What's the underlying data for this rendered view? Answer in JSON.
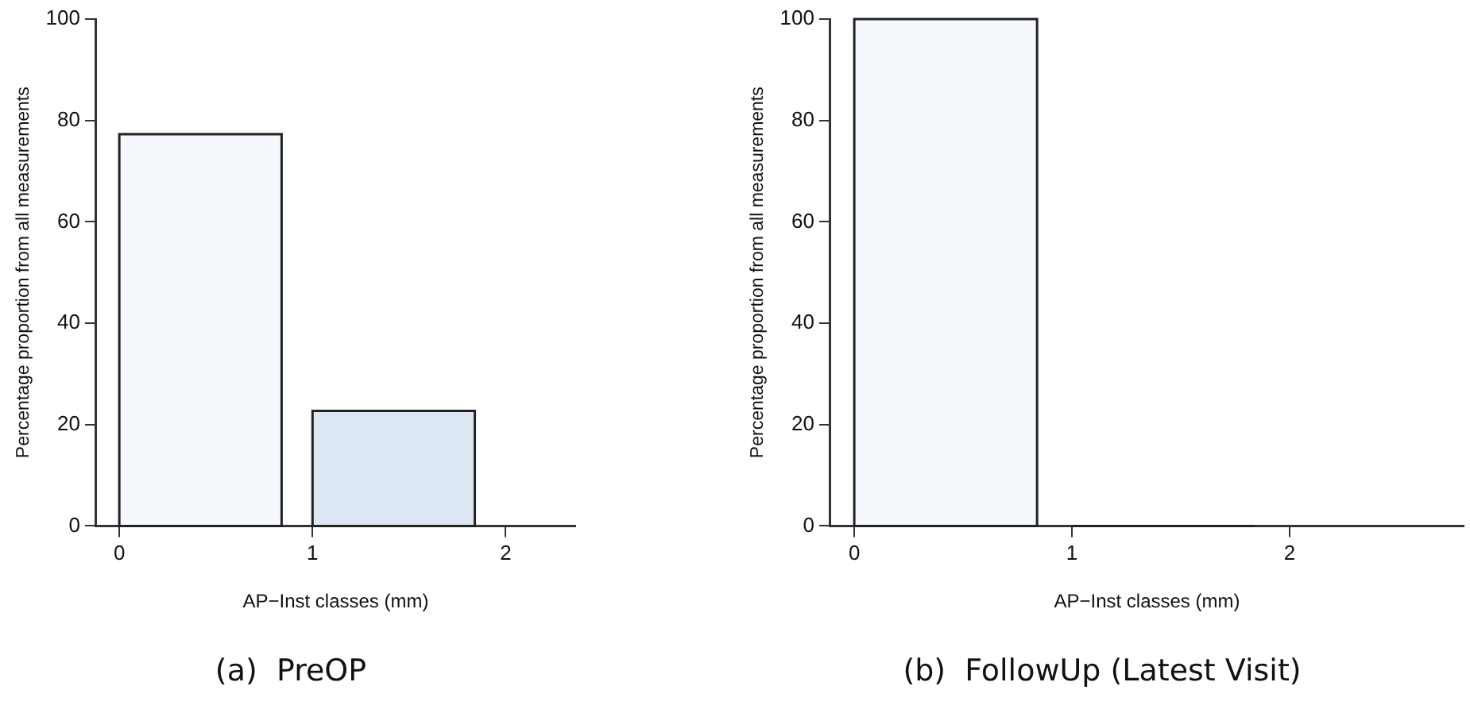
{
  "chart_data": [
    {
      "type": "histogram",
      "title": "(a)  PreOP",
      "xlabel": "AP−Inst classes (mm)",
      "ylabel": "Percentage proportion from all measurements",
      "bins": [
        0,
        0.84,
        1,
        1.84
      ],
      "values": [
        77.3,
        null,
        22.7
      ],
      "colors": [
        "#f5f9fe",
        null,
        "#dce7f3"
      ],
      "xlim": [
        -0.12,
        2.36
      ],
      "xticks": [
        0,
        1,
        2
      ],
      "ylim": [
        0,
        100
      ],
      "yticks": [
        0,
        20,
        40,
        60,
        80,
        100
      ],
      "grid": false,
      "legend": false
    },
    {
      "type": "histogram",
      "title": "(b)  FollowUp (Latest Visit)",
      "xlabel": "AP−Inst classes (mm)",
      "ylabel": "Percentage proportion from all measurements",
      "bins": [
        0,
        0.84,
        1,
        1.84
      ],
      "values": [
        100,
        null,
        0
      ],
      "colors": [
        "#f5f9fe",
        null,
        "#222222"
      ],
      "xlim": [
        -0.11,
        2.8
      ],
      "xticks": [
        0,
        1,
        2
      ],
      "ylim": [
        0,
        100
      ],
      "yticks": [
        0,
        20,
        40,
        60,
        80,
        100
      ],
      "grid": false,
      "legend": false
    }
  ]
}
